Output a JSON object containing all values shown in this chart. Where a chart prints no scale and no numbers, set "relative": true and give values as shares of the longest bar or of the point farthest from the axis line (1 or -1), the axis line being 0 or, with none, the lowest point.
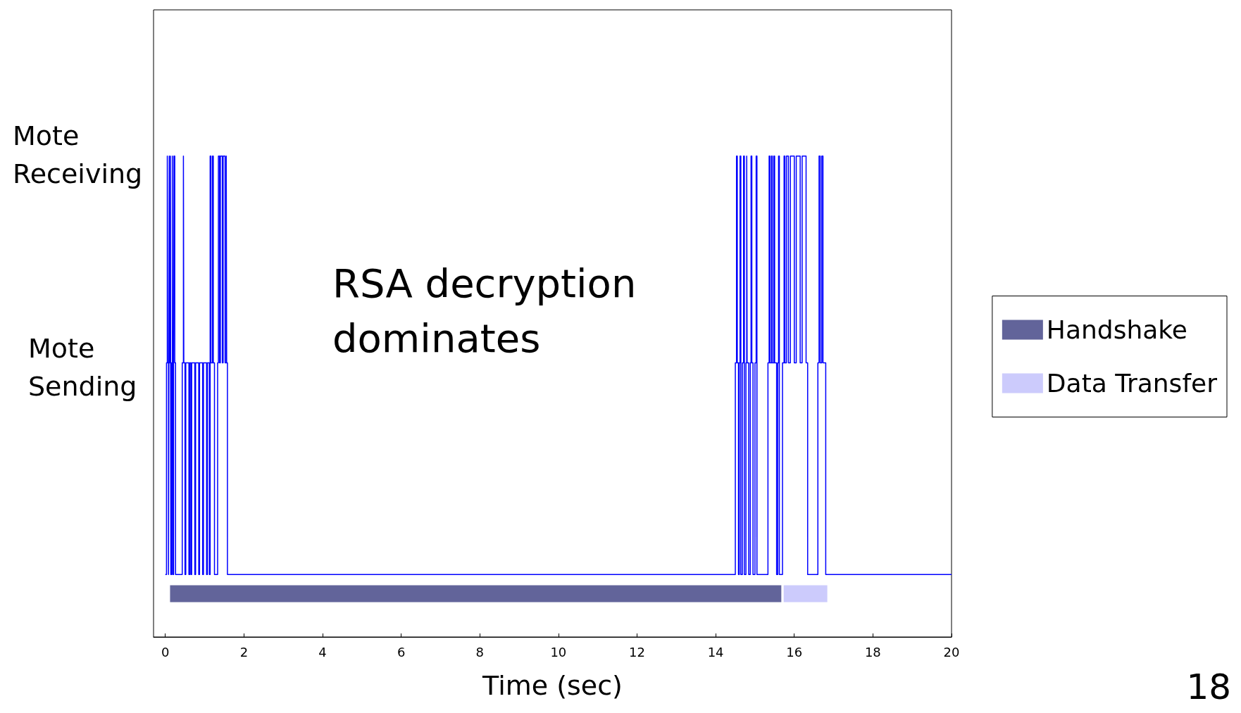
{
  "chart_data": {
    "type": "step",
    "xlabel": "Time (sec)",
    "x": [
      0,
      0.03,
      0.05,
      0.06,
      0.08,
      0.09,
      0.1,
      0.11,
      0.13,
      0.14,
      0.16,
      0.18,
      0.19,
      0.21,
      0.22,
      0.24,
      0.26,
      0.43,
      0.46,
      0.47,
      0.5,
      0.52,
      0.6,
      0.62,
      0.65,
      0.67,
      0.75,
      0.77,
      0.85,
      0.87,
      0.95,
      0.97,
      1.05,
      1.07,
      1.12,
      1.14,
      1.16,
      1.2,
      1.22,
      1.25,
      1.33,
      1.35,
      1.38,
      1.4,
      1.45,
      1.47,
      1.52,
      1.55,
      1.56,
      1.58,
      14.5,
      14.53,
      14.55,
      14.58,
      14.6,
      14.62,
      14.64,
      14.68,
      14.71,
      14.73,
      14.77,
      14.79,
      14.8,
      14.84,
      14.88,
      14.9,
      14.92,
      14.95,
      15.0,
      15.03,
      15.05,
      15.33,
      15.36,
      15.38,
      15.42,
      15.44,
      15.48,
      15.5,
      15.55,
      15.58,
      15.6,
      15.62,
      15.7,
      15.74,
      15.76,
      15.8,
      15.85,
      15.9,
      16.0,
      16.05,
      16.15,
      16.2,
      16.3,
      16.34,
      16.6,
      16.63,
      16.66,
      16.7,
      16.73,
      16.8,
      20
    ],
    "series": [
      {
        "color": "#0000ff",
        "values": [
          0.13,
          0.57,
          1,
          0.57,
          0.13,
          0.57,
          1,
          0.57,
          1,
          0.13,
          0.57,
          1,
          0.13,
          0.57,
          1,
          0.57,
          0.13,
          0.57,
          1,
          0.57,
          0.13,
          0.57,
          0.13,
          0.57,
          0.13,
          0.57,
          0.13,
          0.57,
          0.13,
          0.57,
          0.13,
          0.57,
          0.13,
          0.57,
          0.13,
          1,
          0.57,
          1,
          0.57,
          0.13,
          0.57,
          1,
          0.57,
          1,
          0.57,
          1,
          0.57,
          1,
          0.57,
          0.13,
          0.57,
          1,
          0.57,
          0.13,
          0.57,
          1,
          0.13,
          0.57,
          1,
          0.13,
          0.57,
          1,
          0.57,
          0.13,
          0.57,
          1,
          0.57,
          0.13,
          0.57,
          1,
          0.13,
          0.57,
          1,
          0.57,
          1,
          0.57,
          1,
          0.57,
          0.13,
          0.57,
          1,
          0.13,
          0.57,
          1,
          0.57,
          1,
          0.57,
          1,
          0.57,
          1,
          0.57,
          1,
          0.57,
          0.13,
          0.57,
          1,
          0.57,
          1,
          0.57,
          0.13,
          0.13
        ]
      },
      {
        "name": "Handshake",
        "type": "line",
        "color": "#62649a",
        "x": [
          0.12,
          15.67
        ],
        "values": [
          0.09,
          0.09
        ]
      },
      {
        "name": "Data Transfer",
        "type": "line",
        "color": "#cccbfc",
        "x": [
          15.73,
          16.84
        ],
        "values": [
          0.09,
          0.09
        ]
      }
    ],
    "relative": true,
    "xlim": [
      -0.3,
      20
    ],
    "xticks": [
      0,
      2,
      4,
      6,
      8,
      10,
      12,
      14,
      16,
      18,
      20
    ],
    "annotations": [
      "Mote\nReceiving",
      "Mote\nSending",
      "RSA decryption\ndominates",
      "18"
    ],
    "legend": "right",
    "grid": false
  }
}
